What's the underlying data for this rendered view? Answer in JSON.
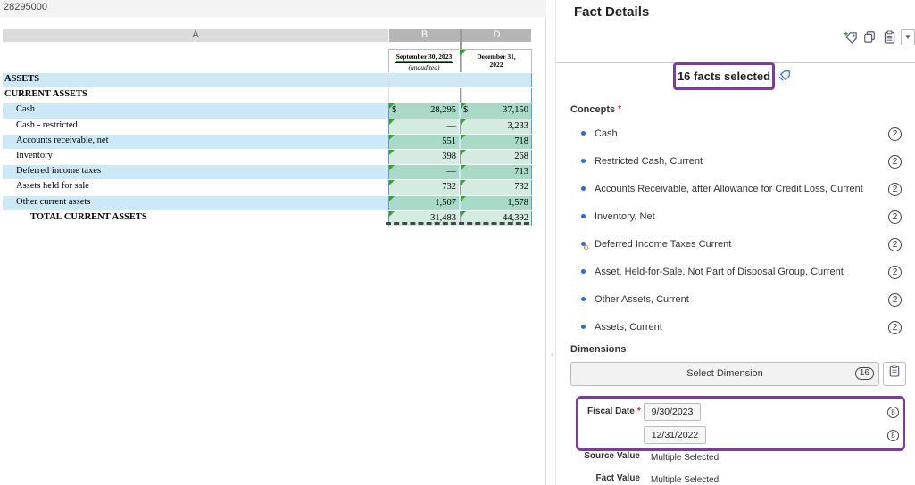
{
  "formula_bar": {
    "cell_ref": "28295000"
  },
  "columns": {
    "a": "A",
    "b": "B",
    "d": "D"
  },
  "statement": {
    "period_b": "September 30, 2023",
    "period_b_note": "(unaudited)",
    "period_d_line1": "December 31,",
    "period_d_line2": "2022",
    "rows": [
      {
        "label": "ASSETS",
        "bold": true,
        "indent": 0,
        "b": "",
        "d": "",
        "blue": true,
        "empty": true
      },
      {
        "label": "CURRENT ASSETS",
        "bold": true,
        "indent": 0,
        "b": "",
        "d": "",
        "blue": false,
        "empty": true
      },
      {
        "label": "Cash",
        "bold": false,
        "indent": 1,
        "b": "28,295",
        "d": "37,150",
        "blue": true,
        "dollar": true
      },
      {
        "label": "Cash - restricted",
        "bold": false,
        "indent": 1,
        "b": "—",
        "d": "3,233",
        "blue": false
      },
      {
        "label": "Accounts receivable, net",
        "bold": false,
        "indent": 1,
        "b": "551",
        "d": "718",
        "blue": true
      },
      {
        "label": "Inventory",
        "bold": false,
        "indent": 1,
        "b": "398",
        "d": "268",
        "blue": false
      },
      {
        "label": "Deferred income taxes",
        "bold": false,
        "indent": 1,
        "b": "—",
        "d": "713",
        "blue": true
      },
      {
        "label": "Assets held for sale",
        "bold": false,
        "indent": 1,
        "b": "732",
        "d": "732",
        "blue": false
      },
      {
        "label": "Other current assets",
        "bold": false,
        "indent": 1,
        "b": "1,507",
        "d": "1,578",
        "blue": true
      },
      {
        "label": "TOTAL CURRENT ASSETS",
        "bold": true,
        "indent": 2,
        "b": "31,483",
        "d": "44,392",
        "blue": false
      }
    ],
    "dollar_sign": "$"
  },
  "panel": {
    "title": "Fact Details",
    "facts_selected": "16 facts selected",
    "concepts_label": "Concepts",
    "required_mark": "*",
    "concepts": [
      {
        "name": "Cash",
        "count": "2"
      },
      {
        "name": "Restricted Cash, Current",
        "count": "2"
      },
      {
        "name": "Accounts Receivable, after Allowance for Credit Loss, Current",
        "count": "2"
      },
      {
        "name": "Inventory, Net",
        "count": "2"
      },
      {
        "name": "Deferred Income Taxes Current",
        "count": "2",
        "extension": true
      },
      {
        "name": "Asset, Held-for-Sale, Not Part of Disposal Group, Current",
        "count": "2"
      },
      {
        "name": "Other Assets, Current",
        "count": "2"
      },
      {
        "name": "Assets, Current",
        "count": "2"
      }
    ],
    "dimensions_label": "Dimensions",
    "select_dimension": "Select Dimension",
    "select_dimension_count": "16",
    "fiscal_date_label": "Fiscal Date",
    "fiscal_dates": [
      {
        "date": "9/30/2023",
        "count": "8"
      },
      {
        "date": "12/31/2022",
        "count": "8"
      }
    ],
    "source_value_label": "Source Value",
    "source_value": "Multiple Selected",
    "fact_value_label": "Fact Value",
    "fact_value": "Multiple Selected"
  },
  "icons": {
    "add_fact": "add-fact-icon",
    "copy": "copy-icon",
    "clipboard": "clipboard-icon",
    "more": "chevron-down-icon",
    "facts_info": "tag-icon"
  },
  "colors": {
    "highlight_border": "#7c3c99",
    "row_blue": "#cde9f7",
    "cell_green": "#d4ecdf",
    "flag_green": "#33a532",
    "bullet_blue": "#2a6bd8"
  }
}
